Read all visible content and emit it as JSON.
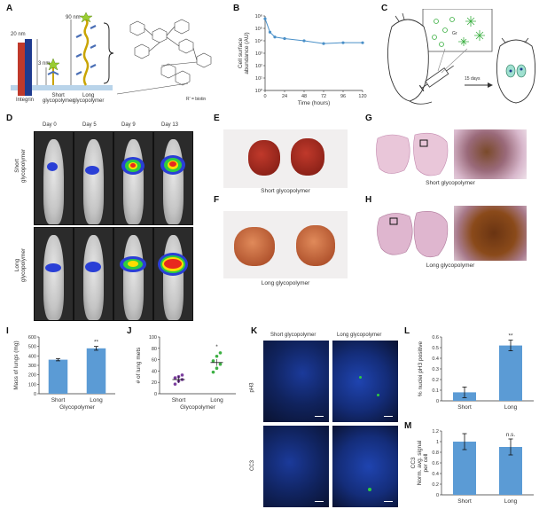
{
  "panels": {
    "A": "A",
    "B": "B",
    "C": "C",
    "D": "D",
    "E": "E",
    "F": "F",
    "G": "G",
    "H": "H",
    "I": "I",
    "J": "J",
    "K": "K",
    "L": "L",
    "M": "M"
  },
  "panel_a": {
    "scale_20nm": "20 nm",
    "scale_90nm": "90 nm",
    "scale_3nm": "3 nm",
    "integrin": "Integrin",
    "short_label": "Short\nglycopolymer",
    "long_label": "Long\nglycopolymer",
    "footnote": "R' = biotin"
  },
  "panel_c": {
    "arrow_label": "15 days"
  },
  "panel_d": {
    "days": [
      "Day 0",
      "Day 5",
      "Day 9",
      "Day 13"
    ],
    "row_short": "Short\nglycopolymer",
    "row_long": "Long\nglycopolymer"
  },
  "panel_e": {
    "caption": "Short glycopolymer"
  },
  "panel_f": {
    "caption": "Long glycopolymer"
  },
  "panel_g": {
    "caption": "Short glycopolymer"
  },
  "panel_h": {
    "caption": "Long glycopolymer"
  },
  "panel_k": {
    "col_short": "Short glycopolymer",
    "col_long": "Long glycopolymer",
    "row_ph3": "pH3",
    "row_cc3": "CC3"
  },
  "colors": {
    "bar_blue": "#5b9bd5",
    "line_blue": "#4a90c8",
    "short_purple": "#7b3f9e",
    "long_green": "#3cb043"
  },
  "chart_data": [
    {
      "id": "B",
      "type": "line",
      "xlabel": "Time (hours)",
      "ylabel": "Cell surface abundance (AU)",
      "yscale": "log",
      "ylim": [
        1,
        1000000
      ],
      "xlim": [
        0,
        120
      ],
      "xticks": [
        "0",
        "24",
        "48",
        "72",
        "96",
        "120"
      ],
      "yticks": [
        "10⁰",
        "10¹",
        "10²",
        "10³",
        "10⁴",
        "10⁵",
        "10⁶"
      ],
      "x": [
        0,
        6,
        12,
        24,
        48,
        72,
        96,
        120
      ],
      "values": [
        600000,
        50000,
        20000,
        15000,
        10000,
        6000,
        7000,
        7000
      ]
    },
    {
      "id": "I",
      "type": "bar",
      "categories": [
        "Short",
        "Long"
      ],
      "values": [
        360,
        480
      ],
      "errors": [
        12,
        20
      ],
      "xlabel": "Glycopolymer",
      "ylabel": "Mass of lungs (mg)",
      "ylim": [
        0,
        600
      ],
      "yticks": [
        "0",
        "100",
        "200",
        "300",
        "400",
        "500",
        "600"
      ],
      "annotations": [
        "",
        "**"
      ]
    },
    {
      "id": "J",
      "type": "scatter",
      "categories": [
        "Short",
        "Long"
      ],
      "xlabel": "Glycopolymer",
      "ylabel": "# of lung mets",
      "ylim": [
        0,
        100
      ],
      "yticks": [
        "0",
        "20",
        "40",
        "60",
        "80",
        "100"
      ],
      "series": [
        {
          "name": "Short",
          "values": [
            17,
            22,
            25,
            28,
            30,
            33
          ]
        },
        {
          "name": "Long",
          "values": [
            38,
            45,
            52,
            58,
            66,
            72
          ]
        }
      ],
      "means": [
        25,
        55
      ],
      "annotations": [
        "",
        "*"
      ]
    },
    {
      "id": "L",
      "type": "bar",
      "categories": [
        "Short",
        "Long"
      ],
      "values": [
        0.08,
        0.52
      ],
      "errors": [
        0.05,
        0.05
      ],
      "ylabel": "% nuclei pH3 positive",
      "ylim": [
        0,
        0.6
      ],
      "yticks": [
        "0",
        "0.1",
        "0.2",
        "0.3",
        "0.4",
        "0.5",
        "0.6"
      ],
      "annotations": [
        "",
        "**"
      ]
    },
    {
      "id": "M",
      "type": "bar",
      "categories": [
        "Short",
        "Long"
      ],
      "values": [
        1.0,
        0.9
      ],
      "errors": [
        0.15,
        0.15
      ],
      "ylabel": "CC3 Norm. avg. signal per cell",
      "ylim": [
        0,
        1.2
      ],
      "yticks": [
        "0",
        "0.2",
        "0.4",
        "0.6",
        "0.8",
        "1",
        "1.2"
      ],
      "annotations": [
        "",
        "n.s."
      ]
    }
  ]
}
